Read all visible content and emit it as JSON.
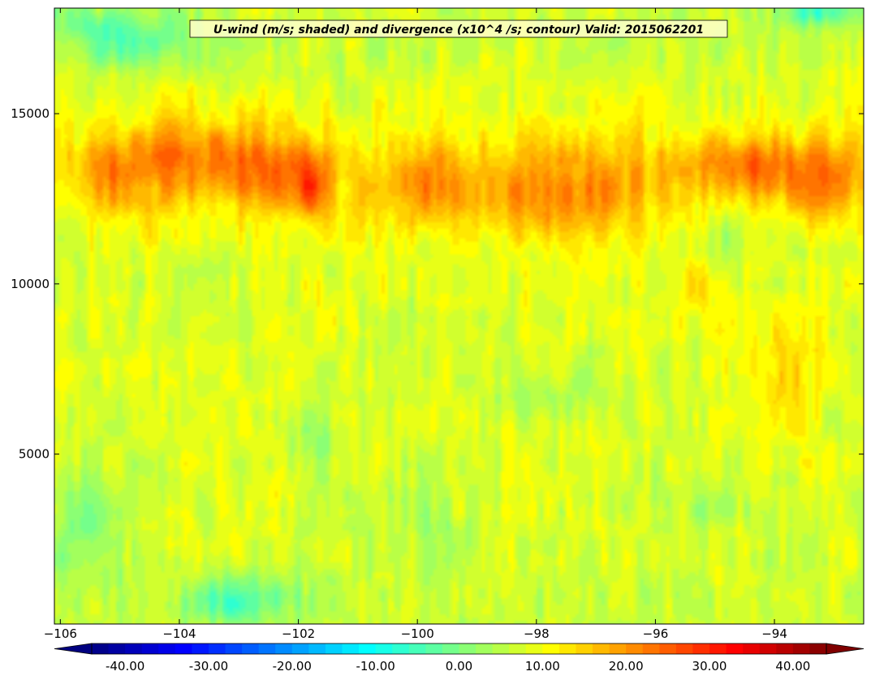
{
  "chart_data": {
    "type": "heatmap",
    "title": "U-wind (m/s; shaded) and divergence (x10^4 /s; contour) Valid: 2015062201",
    "xlim": [
      -106.1,
      -92.5
    ],
    "ylim": [
      10,
      18100
    ],
    "x_ticks": [
      -106,
      -104,
      -102,
      -100,
      -98,
      -96,
      -94
    ],
    "x_tick_labels": [
      "−106",
      "−104",
      "−102",
      "−100",
      "−98",
      "−96",
      "−94"
    ],
    "y_ticks": [
      5000,
      10000,
      15000
    ],
    "y_tick_labels": [
      "5000",
      "10000",
      "15000"
    ],
    "colorbar": {
      "orientation": "horizontal",
      "vmin": -44,
      "vmax": 44,
      "extend": "both",
      "tick_values": [
        -40,
        -30,
        -20,
        -10,
        0,
        10,
        20,
        30,
        40
      ],
      "tick_labels": [
        "-40.00",
        "-30.00",
        "-20.00",
        "-10.00",
        "0.00",
        "10.00",
        "20.00",
        "30.00",
        "40.00"
      ]
    },
    "features": [
      {
        "x": -105.0,
        "y": 13300,
        "value": 20,
        "sx": 0.55,
        "sy": 1300
      },
      {
        "x": -104.1,
        "y": 13900,
        "value": 20,
        "sx": 0.35,
        "sy": 1200
      },
      {
        "x": -103.2,
        "y": 13700,
        "value": 21,
        "sx": 0.7,
        "sy": 1200
      },
      {
        "x": -102.4,
        "y": 13300,
        "value": 17,
        "sx": 0.5,
        "sy": 1100
      },
      {
        "x": -101.8,
        "y": 13000,
        "value": 26,
        "sx": 0.3,
        "sy": 1100
      },
      {
        "x": -99.9,
        "y": 12800,
        "value": 19,
        "sx": 0.7,
        "sy": 1200
      },
      {
        "x": -98.3,
        "y": 12400,
        "value": 16,
        "sx": 0.8,
        "sy": 1100
      },
      {
        "x": -97.0,
        "y": 12700,
        "value": 17,
        "sx": 1.0,
        "sy": 1500
      },
      {
        "x": -94.4,
        "y": 13500,
        "value": 22,
        "sx": 1.1,
        "sy": 800
      },
      {
        "x": -93.2,
        "y": 12800,
        "value": 19,
        "sx": 0.5,
        "sy": 1100
      },
      {
        "x": -93.8,
        "y": 7300,
        "value": 16,
        "sx": 0.6,
        "sy": 1700
      },
      {
        "x": -95.2,
        "y": 9800,
        "value": 15,
        "sx": 0.5,
        "sy": 800
      },
      {
        "x": -102.1,
        "y": 7800,
        "value": 11,
        "sx": 0.2,
        "sy": 1500
      },
      {
        "x": -101.3,
        "y": 9500,
        "value": 11,
        "sx": 0.25,
        "sy": 700
      },
      {
        "x": -94.8,
        "y": 11400,
        "value": 2,
        "sx": 0.6,
        "sy": 900
      },
      {
        "x": -105.0,
        "y": 17300,
        "value": -5,
        "sx": 1.2,
        "sy": 900
      },
      {
        "x": -93.3,
        "y": 18000,
        "value": -8,
        "sx": 0.6,
        "sy": 400
      },
      {
        "x": -103.0,
        "y": 700,
        "value": -6,
        "sx": 1.1,
        "sy": 700
      },
      {
        "x": -105.6,
        "y": 3000,
        "value": -2,
        "sx": 0.6,
        "sy": 1800
      },
      {
        "x": -101.7,
        "y": 5500,
        "value": 1,
        "sx": 0.4,
        "sy": 1200
      },
      {
        "x": -97.8,
        "y": 6800,
        "value": 2,
        "sx": 0.8,
        "sy": 700
      },
      {
        "x": -95.0,
        "y": 3500,
        "value": 3,
        "sx": 0.8,
        "sy": 700
      },
      {
        "x": -100.2,
        "y": 3000,
        "value": 3,
        "sx": 1.2,
        "sy": 1500
      },
      {
        "x": -104.6,
        "y": 6000,
        "value": 11,
        "sx": 0.2,
        "sy": 900
      }
    ]
  }
}
